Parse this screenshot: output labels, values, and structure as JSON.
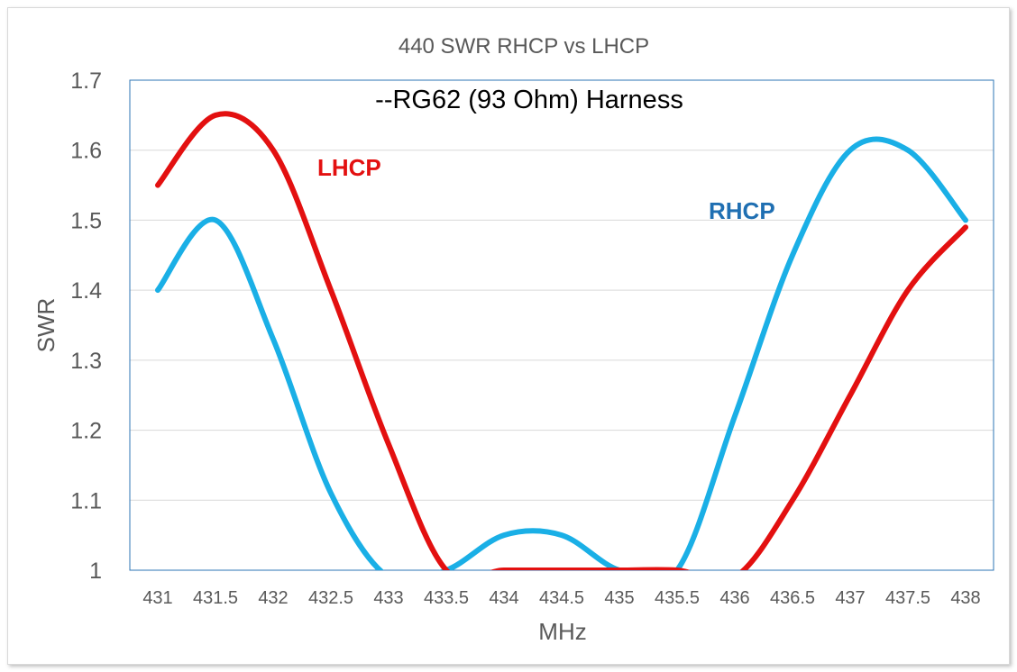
{
  "chart_data": {
    "type": "line",
    "title": "440 SWR RHCP vs LHCP",
    "annotation": "--RG62 (93 Ohm) Harness",
    "xlabel": "MHz",
    "ylabel": "SWR",
    "x_ticks": [
      "431",
      "431.5",
      "432",
      "432.5",
      "433",
      "433.5",
      "434",
      "434.5",
      "435",
      "435.5",
      "436",
      "436.5",
      "437",
      "437.5",
      "438"
    ],
    "y_ticks": [
      "1",
      "1.1",
      "1.2",
      "1.3",
      "1.4",
      "1.5",
      "1.6",
      "1.7"
    ],
    "ylim": [
      1,
      1.7
    ],
    "xlim": [
      431,
      438
    ],
    "grid": true,
    "series": [
      {
        "name": "RHCP",
        "color": "#1AAFE6",
        "label_color": "#1F6FB2",
        "x": [
          431,
          431.5,
          432,
          432.5,
          433,
          433.5,
          434,
          434.5,
          435,
          435.5,
          436,
          436.5,
          437,
          437.5,
          438
        ],
        "y": [
          1.4,
          1.5,
          1.33,
          1.11,
          0.99,
          1.0,
          1.05,
          1.05,
          1.0,
          1.0,
          1.22,
          1.45,
          1.6,
          1.6,
          1.5
        ]
      },
      {
        "name": "LHCP",
        "color": "#E31010",
        "label_color": "#E31010",
        "x": [
          431,
          431.5,
          432,
          432.5,
          433,
          433.5,
          434,
          434.5,
          435,
          435.5,
          436,
          436.5,
          437,
          437.5,
          438
        ],
        "y": [
          1.55,
          1.65,
          1.6,
          1.4,
          1.18,
          1.0,
          1.0,
          1.0,
          1.0,
          1.0,
          0.99,
          1.1,
          1.25,
          1.4,
          1.49
        ]
      }
    ]
  }
}
